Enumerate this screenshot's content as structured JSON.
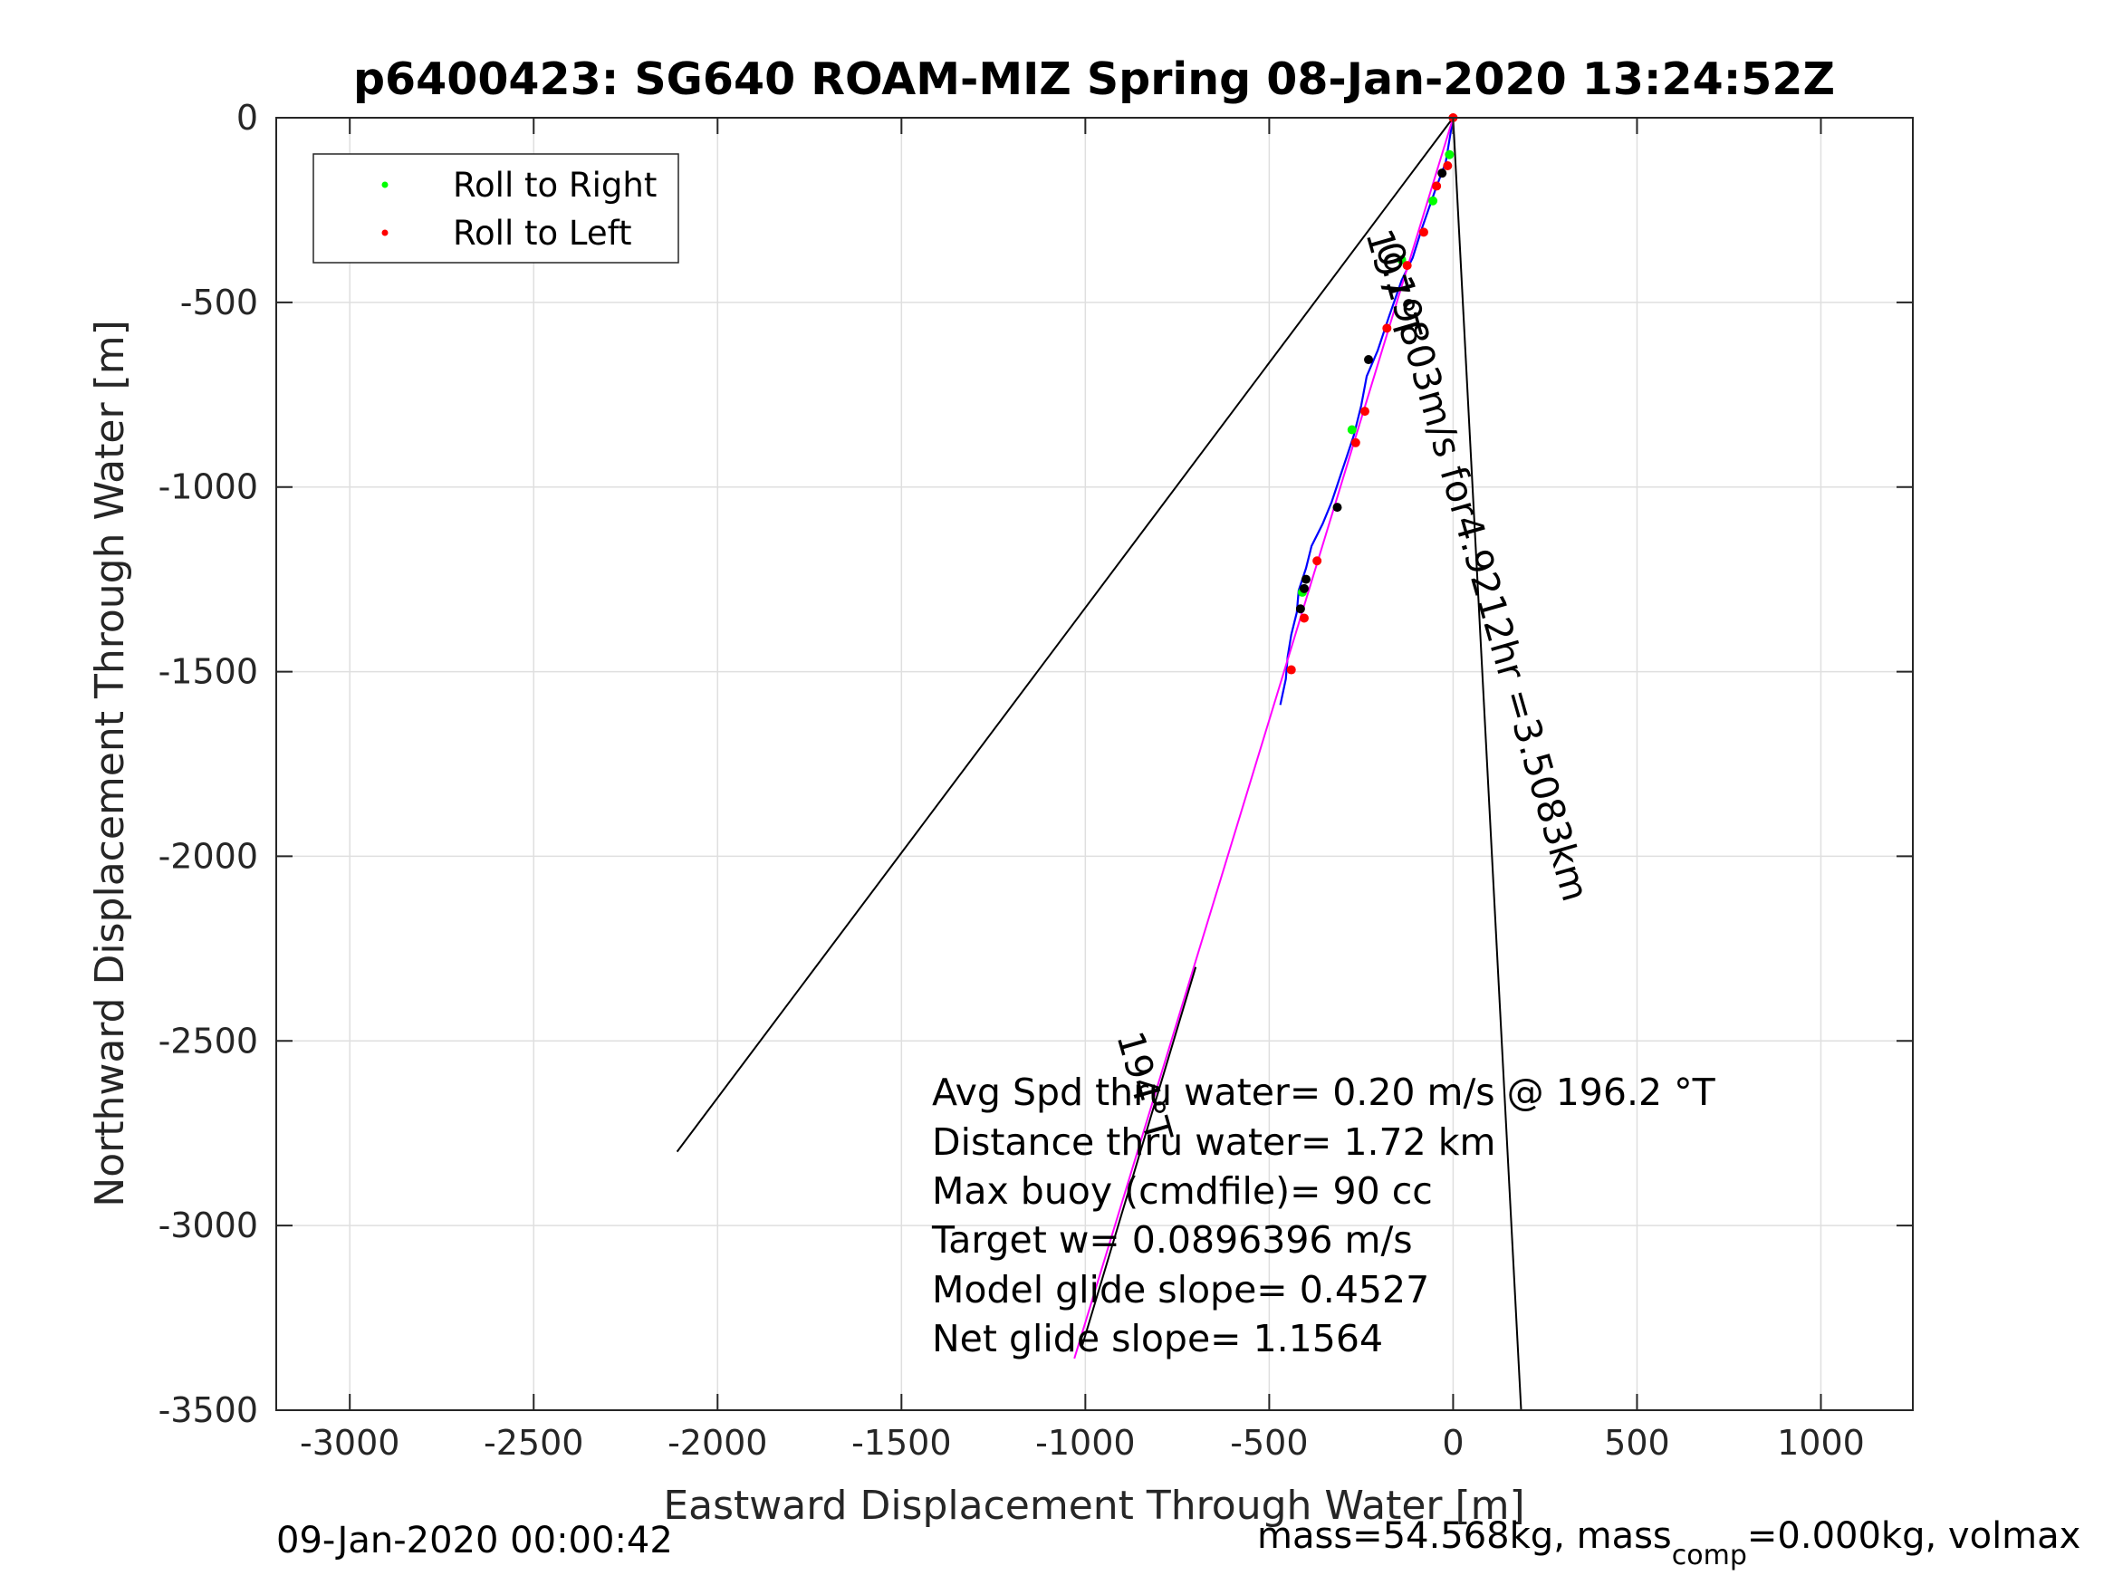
{
  "chart_data": {
    "type": "line",
    "title": "p6400423: SG640 ROAM-MIZ Spring 08-Jan-2020 13:24:52Z",
    "xlabel": "Eastward Displacement Through Water [m]",
    "ylabel": "Northward Displacement Through Water [m]",
    "xlim": [
      -3200,
      1250
    ],
    "ylim": [
      -3500,
      0
    ],
    "xticks": [
      -3000,
      -2500,
      -2000,
      -1500,
      -1000,
      -500,
      0,
      500,
      1000
    ],
    "yticks": [
      0,
      -500,
      -1000,
      -1500,
      -2000,
      -2500,
      -3000,
      -3500
    ],
    "grid": true,
    "legend_position": "top-left",
    "legend": [
      {
        "label": "Roll to Right",
        "color": "#00ff00"
      },
      {
        "label": "Roll to Left",
        "color": "#ff0000"
      }
    ],
    "series": [
      {
        "name": "Roll to Right",
        "type": "scatter",
        "color": "#00ff00",
        "x": [
          -10,
          -55,
          -140,
          -275,
          -410
        ],
        "y": [
          -100,
          -225,
          -385,
          -845,
          -1285
        ]
      },
      {
        "name": "Roll to Left",
        "type": "scatter",
        "color": "#ff0000",
        "x": [
          0,
          -15,
          -45,
          -80,
          -125,
          -180,
          -240,
          -265,
          -370,
          -405,
          -440
        ],
        "y": [
          0,
          -130,
          -185,
          -310,
          -400,
          -570,
          -795,
          -880,
          -1200,
          -1355,
          -1495
        ]
      },
      {
        "type": "scatter",
        "color": "#000000",
        "x": [
          -30,
          -230,
          -315,
          -400,
          -405,
          -415
        ],
        "y": [
          -150,
          -655,
          -1055,
          -1250,
          -1275,
          -1330
        ]
      },
      {
        "type": "line",
        "color": "#0000ff",
        "x": [
          0,
          -20,
          -50,
          -85,
          -110,
          -140,
          -175,
          -205,
          -235,
          -250,
          -270,
          -290,
          -310,
          -330,
          -355,
          -385,
          -400,
          -420,
          -425,
          -440,
          -450,
          -455,
          -470
        ],
        "y": [
          0,
          -120,
          -200,
          -300,
          -380,
          -440,
          -540,
          -630,
          -700,
          -780,
          -860,
          -920,
          -980,
          -1040,
          -1100,
          -1160,
          -1220,
          -1280,
          -1340,
          -1400,
          -1460,
          -1520,
          -1590
        ]
      },
      {
        "type": "line",
        "color": "#ff00ff",
        "x": [
          0,
          -1030
        ],
        "y": [
          0,
          -3360
        ]
      },
      {
        "type": "line",
        "color": "#000000",
        "x": [
          0,
          -2110
        ],
        "y": [
          0,
          -2800
        ]
      },
      {
        "type": "line",
        "color": "#000000",
        "x": [
          0,
          185
        ],
        "y": [
          0,
          -3500
        ]
      },
      {
        "type": "line",
        "color": "#000000",
        "x": [
          -700,
          -1010
        ],
        "y": [
          -2300,
          -3330
        ]
      }
    ],
    "annotations": [
      {
        "text": "0.19803m/s for4.9212hr =3.5083km"
      },
      {
        "text": "197°T"
      },
      {
        "text": "194°T"
      }
    ],
    "stats": [
      "Avg Spd thru water=  0.20 m/s @ 196.2 °T",
      "Distance thru water=  1.72 km",
      "Max buoy (cmdfile)= 90 cc",
      "Target w= 0.0896396 m/s",
      "Model glide slope= 0.4527",
      "Net glide slope= 1.1564"
    ]
  },
  "footer": {
    "date": "09-Jan-2020 00:00:42",
    "mass_prefix": "mass=54.568kg, mass",
    "mass_sub": "comp",
    "mass_suffix": "=0.000kg, volmax"
  }
}
